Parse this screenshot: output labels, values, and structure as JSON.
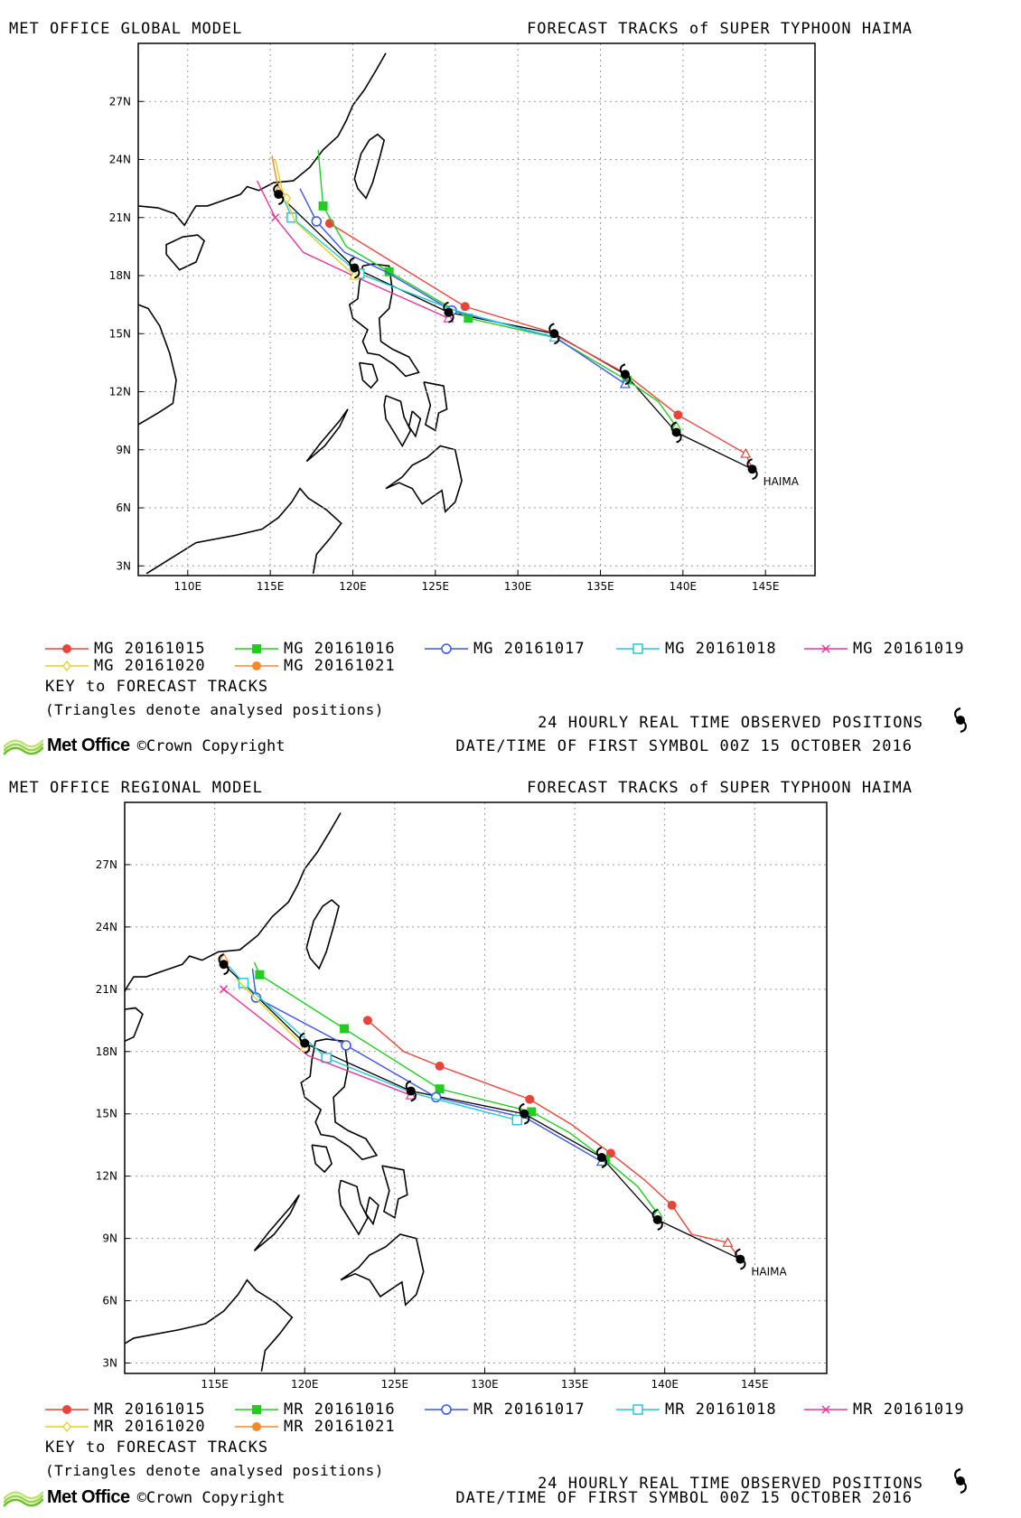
{
  "panels": [
    {
      "model_name": "MET OFFICE GLOBAL MODEL",
      "title": "FORECAST TRACKS of SUPER TYPHOON HAIMA",
      "legend": [
        {
          "label": "MG 20161015",
          "color": "#e8443a",
          "marker": "filled-circle"
        },
        {
          "label": "MG 20161016",
          "color": "#22cc22",
          "marker": "filled-square"
        },
        {
          "label": "MG 20161017",
          "color": "#3a55e8",
          "marker": "open-circle"
        },
        {
          "label": "MG 20161018",
          "color": "#22c8d8",
          "marker": "open-square"
        },
        {
          "label": "MG 20161019",
          "color": "#e8359a",
          "marker": "cross"
        },
        {
          "label": "MG 20161020",
          "color": "#e0d020",
          "marker": "diamond"
        },
        {
          "label": "MG 20161021",
          "color": "#f08a2a",
          "marker": "filled-circle"
        }
      ],
      "key_title": "KEY to FORECAST TRACKS",
      "key_note": "(Triangles denote analysed positions)",
      "obs_note": "24 HOURLY REAL TIME OBSERVED POSITIONS",
      "date_note": "DATE/TIME OF FIRST SYMBOL 00Z 15 OCTOBER 2016",
      "brand": "Met Office",
      "copyright": "©Crown Copyright"
    },
    {
      "model_name": "MET OFFICE REGIONAL MODEL",
      "title": "FORECAST TRACKS of SUPER TYPHOON HAIMA",
      "legend": [
        {
          "label": "MR 20161015",
          "color": "#e8443a",
          "marker": "filled-circle"
        },
        {
          "label": "MR 20161016",
          "color": "#22cc22",
          "marker": "filled-square"
        },
        {
          "label": "MR 20161017",
          "color": "#3a55e8",
          "marker": "open-circle"
        },
        {
          "label": "MR 20161018",
          "color": "#22c8d8",
          "marker": "open-square"
        },
        {
          "label": "MR 20161019",
          "color": "#e8359a",
          "marker": "cross"
        },
        {
          "label": "MR 20161020",
          "color": "#e0d020",
          "marker": "diamond"
        },
        {
          "label": "MR 20161021",
          "color": "#f08a2a",
          "marker": "filled-circle"
        }
      ],
      "key_title": "KEY to FORECAST TRACKS",
      "key_note": "(Triangles denote analysed positions)",
      "obs_note": "24 HOURLY REAL TIME OBSERVED POSITIONS",
      "date_note": "DATE/TIME OF FIRST SYMBOL 00Z 15 OCTOBER 2016",
      "brand": "Met Office",
      "copyright": "©Crown Copyright"
    }
  ],
  "chart_data": [
    {
      "type": "line",
      "title": "FORECAST TRACKS of SUPER TYPHOON HAIMA",
      "xlim": [
        107,
        148
      ],
      "ylim": [
        2.5,
        30
      ],
      "xticks": [
        "110E",
        "115E",
        "120E",
        "125E",
        "130E",
        "135E",
        "140E",
        "145E"
      ],
      "xtick_values": [
        110,
        115,
        120,
        125,
        130,
        135,
        140,
        145
      ],
      "yticks": [
        "3N",
        "6N",
        "9N",
        "12N",
        "15N",
        "18N",
        "21N",
        "24N",
        "27N"
      ],
      "ytick_values": [
        3,
        6,
        9,
        12,
        15,
        18,
        21,
        24,
        27
      ],
      "grid": true,
      "storm_label": "HAIMA",
      "observed": {
        "name": "",
        "points": [
          [
            144.2,
            8.0
          ],
          [
            139.6,
            9.9
          ],
          [
            136.5,
            12.9
          ],
          [
            132.2,
            15.0
          ],
          [
            125.8,
            16.1
          ],
          [
            120.1,
            18.4
          ],
          [
            115.5,
            22.2
          ]
        ]
      },
      "series": [
        {
          "name": "MG 20161015",
          "color": "#e8443a",
          "start": [
            144.2,
            8.0
          ],
          "points": [
            [
              143.8,
              8.8
            ],
            [
              139.7,
              10.8
            ],
            [
              136.4,
              13.0
            ],
            [
              131.9,
              15.1
            ],
            [
              126.8,
              16.4
            ],
            [
              118.6,
              20.7
            ]
          ],
          "markers": [
            [
              139.7,
              10.8
            ],
            [
              126.8,
              16.4
            ],
            [
              118.6,
              20.7
            ]
          ]
        },
        {
          "name": "MG 20161016",
          "color": "#22cc22",
          "start": [
            139.6,
            9.9
          ],
          "points": [
            [
              139.6,
              10.2
            ],
            [
              138.5,
              11.5
            ],
            [
              136.6,
              12.6
            ],
            [
              132.2,
              14.8
            ],
            [
              127.0,
              15.8
            ],
            [
              122.2,
              18.2
            ],
            [
              119.6,
              19.5
            ],
            [
              118.2,
              21.6
            ],
            [
              117.9,
              24.5
            ]
          ],
          "markers": [
            [
              136.6,
              12.6
            ],
            [
              127.0,
              15.8
            ],
            [
              122.2,
              18.2
            ],
            [
              118.2,
              21.6
            ]
          ]
        },
        {
          "name": "MG 20161017",
          "color": "#3a55e8",
          "start": [
            136.5,
            12.9
          ],
          "points": [
            [
              136.5,
              12.4
            ],
            [
              132.3,
              14.8
            ],
            [
              126.0,
              16.2
            ],
            [
              122.0,
              18.2
            ],
            [
              119.5,
              19.2
            ],
            [
              117.8,
              20.8
            ],
            [
              116.8,
              22.5
            ]
          ],
          "markers": [
            [
              126.0,
              16.2
            ],
            [
              117.8,
              20.8
            ]
          ]
        },
        {
          "name": "MG 20161018",
          "color": "#22c8d8",
          "start": [
            132.2,
            15.0
          ],
          "points": [
            [
              132.2,
              14.8
            ],
            [
              126.2,
              16.2
            ],
            [
              120.4,
              18.1
            ],
            [
              116.3,
              21.0
            ],
            [
              115.8,
              22.0
            ]
          ],
          "markers": [
            [
              120.4,
              18.1
            ],
            [
              116.3,
              21.0
            ]
          ]
        },
        {
          "name": "MG 20161019",
          "color": "#e8359a",
          "start": [
            125.8,
            16.1
          ],
          "points": [
            [
              125.8,
              15.8
            ],
            [
              120.0,
              18.0
            ],
            [
              117.0,
              19.2
            ],
            [
              115.3,
              21.0
            ],
            [
              114.2,
              22.9
            ]
          ],
          "markers": [
            [
              115.3,
              21.0
            ]
          ]
        },
        {
          "name": "MG 20161020",
          "color": "#e0d020",
          "start": [
            120.1,
            18.4
          ],
          "points": [
            [
              120.1,
              18.0
            ],
            [
              116.5,
              20.8
            ],
            [
              115.7,
              22.5
            ],
            [
              115.3,
              24.0
            ]
          ],
          "markers": [
            [
              116.0,
              22.0
            ]
          ]
        },
        {
          "name": "MG 20161021",
          "color": "#f08a2a",
          "start": [
            115.5,
            22.2
          ],
          "points": [
            [
              115.5,
              22.4
            ],
            [
              115.1,
              24.2
            ]
          ],
          "markers": []
        }
      ]
    },
    {
      "type": "line",
      "title": "FORECAST TRACKS of SUPER TYPHOON HAIMA",
      "xlim": [
        110,
        149
      ],
      "ylim": [
        2.5,
        30
      ],
      "xticks": [
        "115E",
        "120E",
        "125E",
        "130E",
        "135E",
        "140E",
        "145E"
      ],
      "xtick_values": [
        115,
        120,
        125,
        130,
        135,
        140,
        145
      ],
      "yticks": [
        "3N",
        "6N",
        "9N",
        "12N",
        "15N",
        "18N",
        "21N",
        "24N",
        "27N"
      ],
      "ytick_values": [
        3,
        6,
        9,
        12,
        15,
        18,
        21,
        24,
        27
      ],
      "grid": true,
      "storm_label": "HAIMA",
      "observed": {
        "name": "",
        "points": [
          [
            144.2,
            8.0
          ],
          [
            139.6,
            9.9
          ],
          [
            136.5,
            12.9
          ],
          [
            132.2,
            15.0
          ],
          [
            125.9,
            16.1
          ],
          [
            120.0,
            18.4
          ],
          [
            115.5,
            22.2
          ]
        ]
      },
      "series": [
        {
          "name": "MR 20161015",
          "color": "#e8443a",
          "start": [
            144.2,
            8.0
          ],
          "points": [
            [
              143.5,
              8.8
            ],
            [
              141.5,
              9.2
            ],
            [
              140.4,
              10.6
            ],
            [
              138.9,
              11.8
            ],
            [
              137.0,
              13.1
            ],
            [
              134.8,
              14.5
            ],
            [
              132.5,
              15.7
            ],
            [
              127.5,
              17.3
            ],
            [
              125.5,
              18.0
            ],
            [
              123.5,
              19.5
            ]
          ],
          "markers": [
            [
              140.4,
              10.6
            ],
            [
              137.0,
              13.1
            ],
            [
              132.5,
              15.7
            ],
            [
              127.5,
              17.3
            ],
            [
              123.5,
              19.5
            ]
          ]
        },
        {
          "name": "MR 20161016",
          "color": "#22cc22",
          "start": [
            139.6,
            9.9
          ],
          "points": [
            [
              139.6,
              10.2
            ],
            [
              138.5,
              11.5
            ],
            [
              136.7,
              12.8
            ],
            [
              134.7,
              14.1
            ],
            [
              132.6,
              15.1
            ],
            [
              127.5,
              16.2
            ],
            [
              122.2,
              19.1
            ],
            [
              117.5,
              21.7
            ],
            [
              117.2,
              22.3
            ]
          ],
          "markers": [
            [
              136.7,
              12.8
            ],
            [
              132.6,
              15.1
            ],
            [
              127.5,
              16.2
            ],
            [
              122.2,
              19.1
            ],
            [
              117.5,
              21.7
            ]
          ]
        },
        {
          "name": "MR 20161017",
          "color": "#3a55e8",
          "start": [
            136.5,
            12.9
          ],
          "points": [
            [
              136.5,
              12.7
            ],
            [
              132.3,
              14.8
            ],
            [
              127.3,
              15.8
            ],
            [
              122.3,
              18.3
            ],
            [
              117.3,
              20.6
            ],
            [
              117.1,
              22.0
            ]
          ],
          "markers": [
            [
              127.3,
              15.8
            ],
            [
              122.3,
              18.3
            ],
            [
              117.3,
              20.6
            ]
          ]
        },
        {
          "name": "MR 20161018",
          "color": "#22c8d8",
          "start": [
            132.2,
            15.0
          ],
          "points": [
            [
              131.8,
              14.7
            ],
            [
              126.0,
              16.0
            ],
            [
              121.2,
              17.7
            ],
            [
              116.6,
              21.3
            ],
            [
              115.8,
              22.1
            ]
          ],
          "markers": [
            [
              131.8,
              14.7
            ],
            [
              121.2,
              17.7
            ],
            [
              116.6,
              21.3
            ]
          ]
        },
        {
          "name": "MR 20161019",
          "color": "#e8359a",
          "start": [
            125.9,
            16.1
          ],
          "points": [
            [
              125.9,
              15.9
            ],
            [
              120.2,
              17.8
            ],
            [
              115.5,
              21.0
            ]
          ],
          "markers": [
            [
              115.5,
              21.0
            ]
          ]
        },
        {
          "name": "MR 20161020",
          "color": "#e0d020",
          "start": [
            120.0,
            18.4
          ],
          "points": [
            [
              120.0,
              18.2
            ],
            [
              116.2,
              21.5
            ]
          ],
          "markers": []
        },
        {
          "name": "MR 20161021",
          "color": "#f08a2a",
          "start": [
            115.5,
            22.2
          ],
          "points": [
            [
              115.5,
              22.5
            ]
          ],
          "markers": []
        }
      ]
    }
  ]
}
